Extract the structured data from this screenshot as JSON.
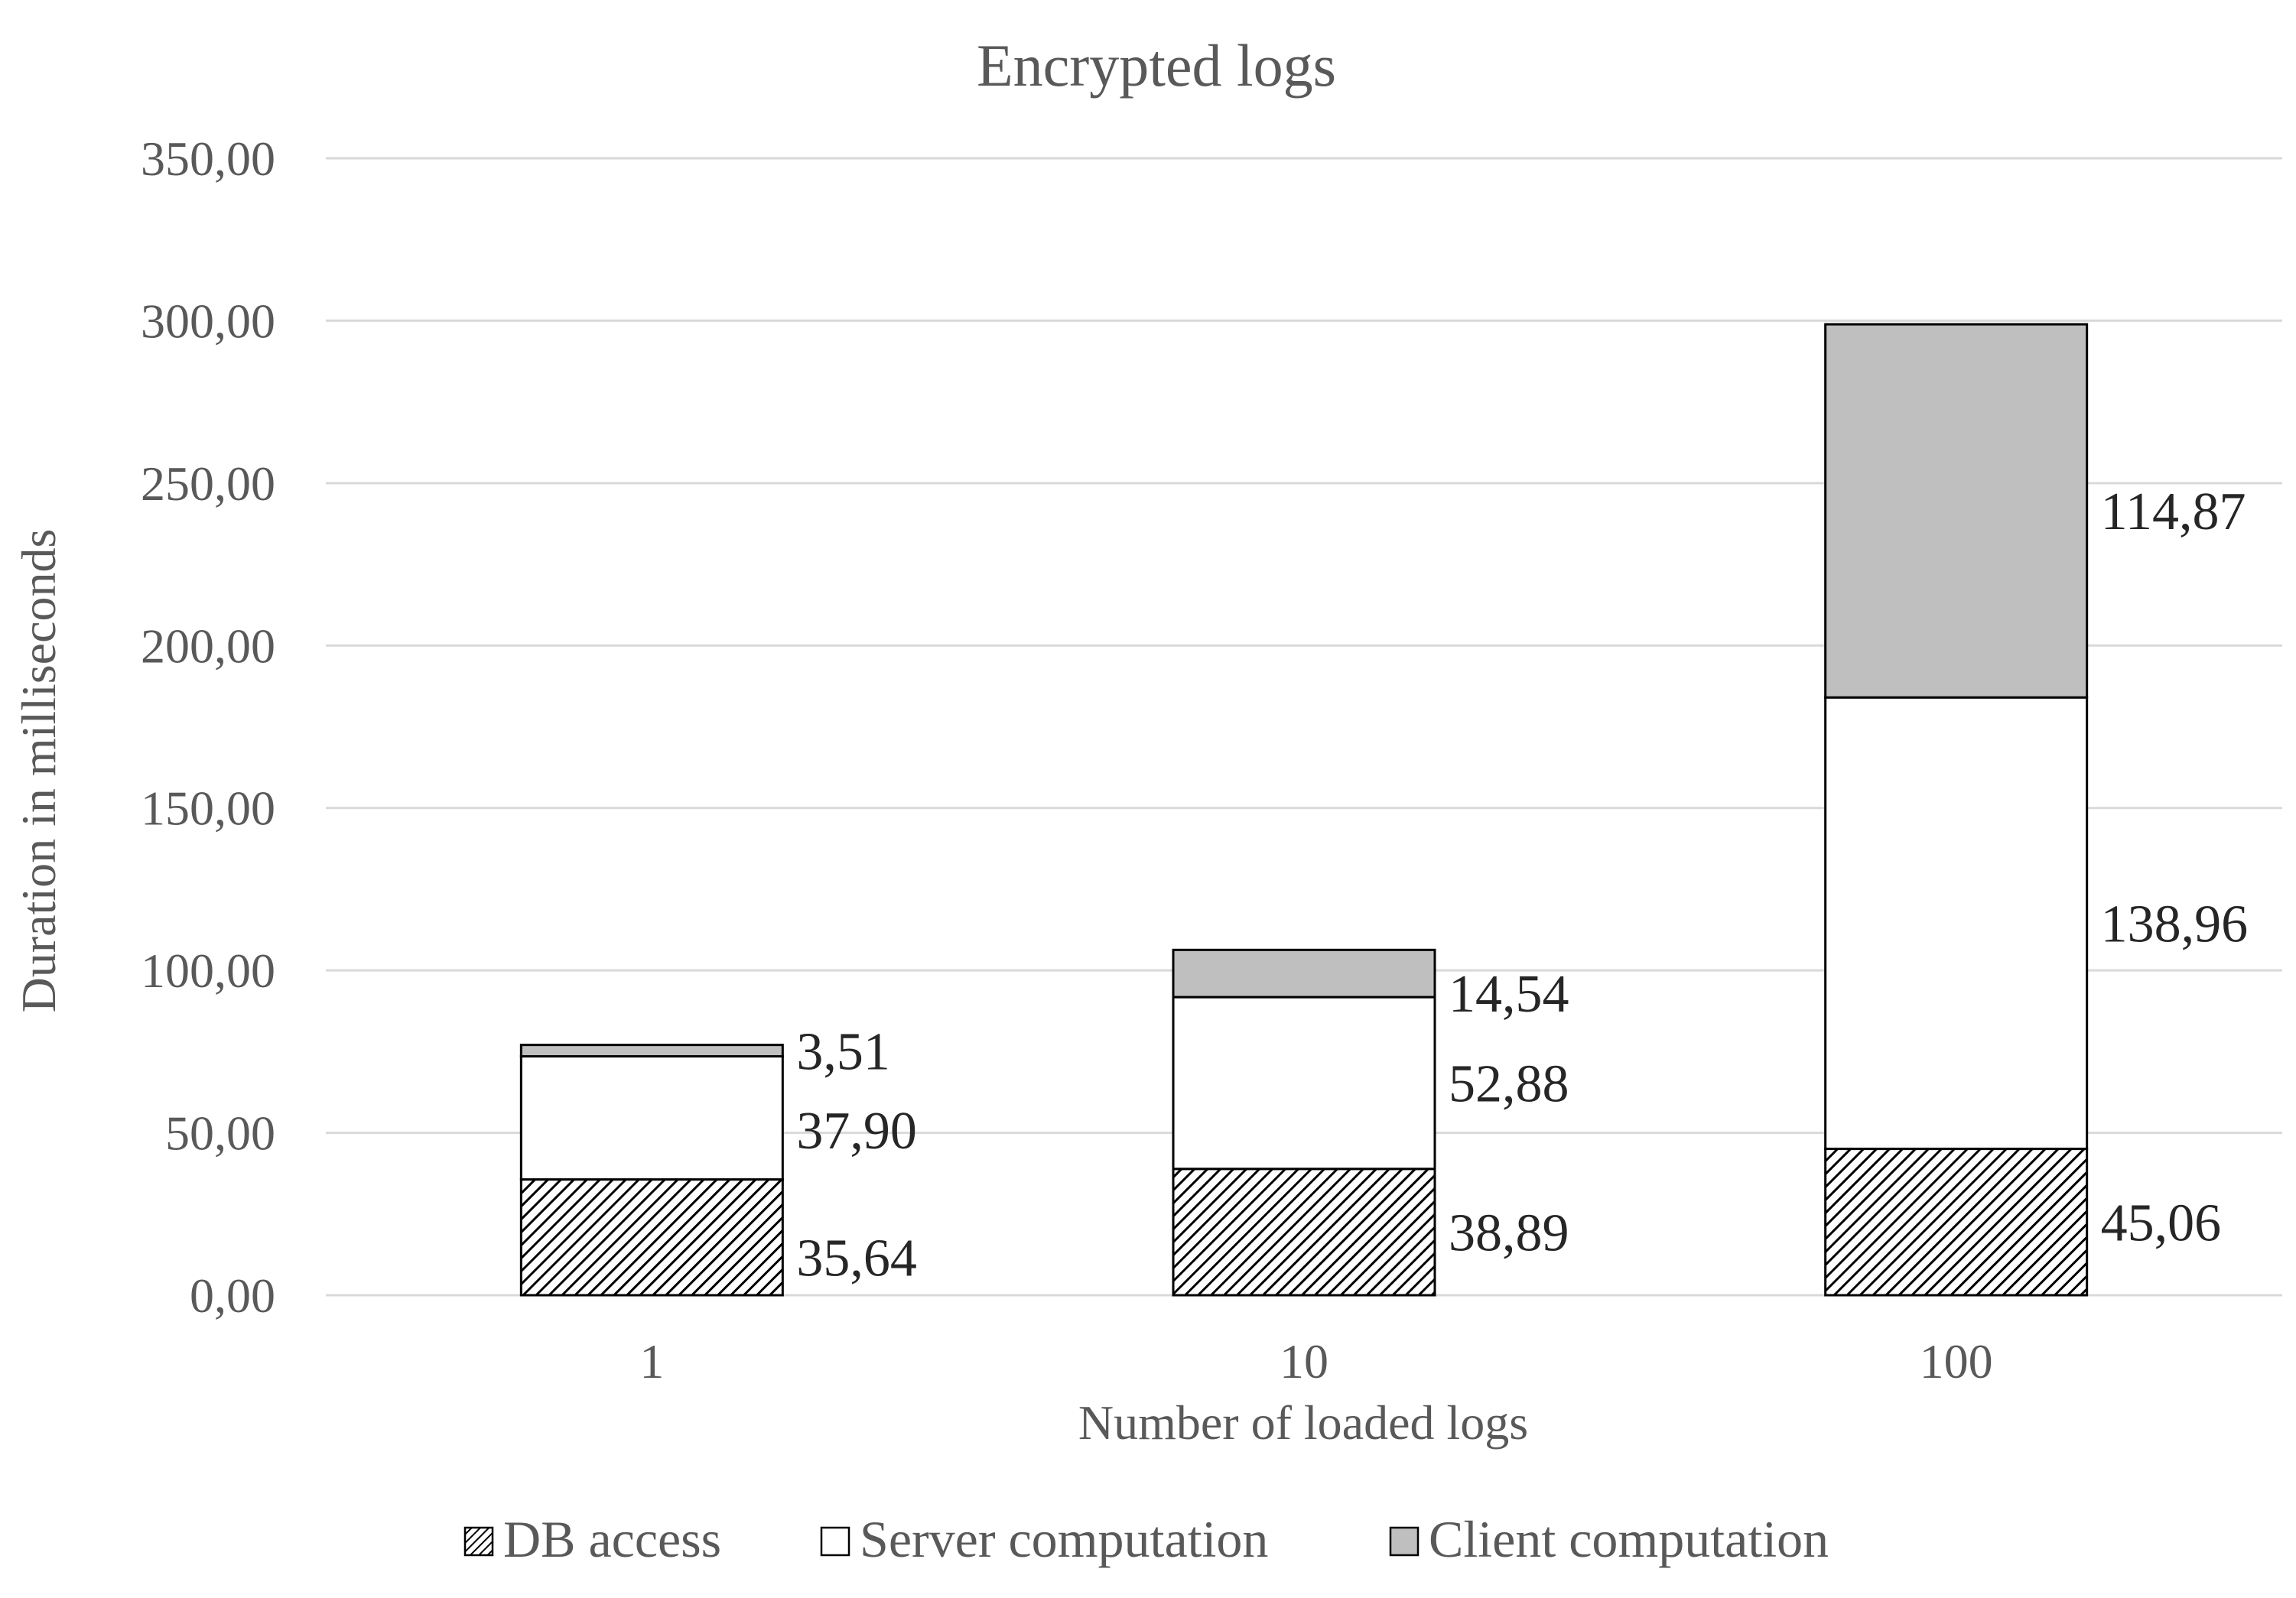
{
  "chart_data": {
    "type": "bar",
    "stacked": true,
    "title": "Encrypted logs",
    "xlabel": "Number of loaded logs",
    "ylabel": "Duration in milliseconds",
    "categories": [
      "1",
      "10",
      "100"
    ],
    "ylim": [
      0,
      350
    ],
    "yticks": [
      0,
      50,
      100,
      150,
      200,
      250,
      300,
      350
    ],
    "ytick_labels": [
      "0,00",
      "50,00",
      "100,00",
      "150,00",
      "200,00",
      "250,00",
      "300,00",
      "350,00"
    ],
    "grid": true,
    "legend_position": "bottom",
    "series": [
      {
        "name": "DB access",
        "values": [
          35.64,
          38.89,
          45.06
        ],
        "labels": [
          "35,64",
          "38,89",
          "45,06"
        ],
        "fill": "hatch",
        "color": "#000000"
      },
      {
        "name": "Server computation",
        "values": [
          37.9,
          52.88,
          138.96
        ],
        "labels": [
          "37,90",
          "52,88",
          "138,96"
        ],
        "fill": "solid",
        "color": "#ffffff"
      },
      {
        "name": "Client computation",
        "values": [
          3.51,
          14.54,
          114.87
        ],
        "labels": [
          "3,51",
          "14,54",
          "114,87"
        ],
        "fill": "solid",
        "color": "#bfbfbf"
      }
    ]
  }
}
